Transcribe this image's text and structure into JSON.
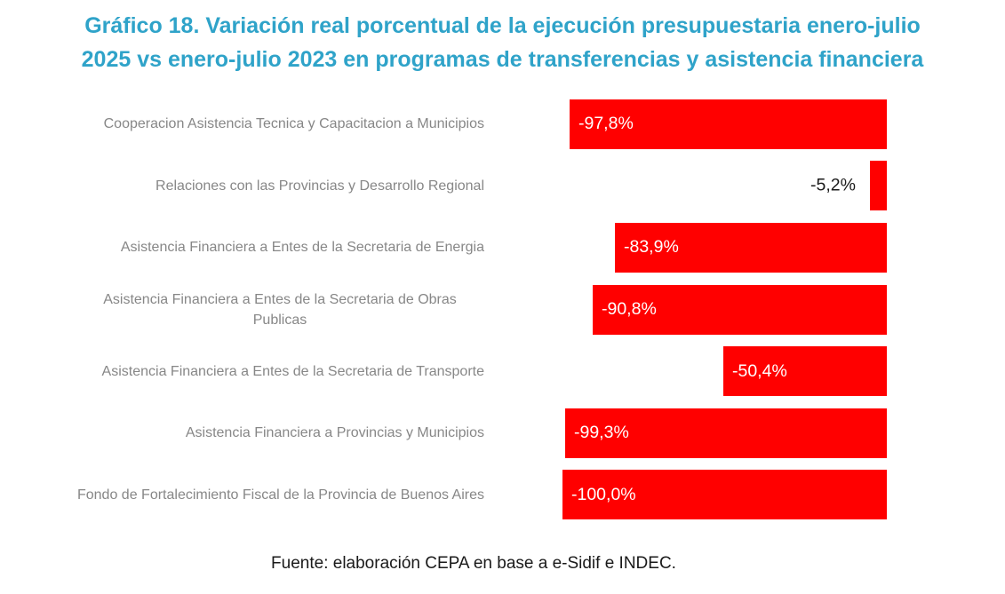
{
  "title": {
    "text": "Gráfico 18. Variación real porcentual de la ejecución presupuestaria enero-julio 2025 vs enero-julio 2023 en programas de transferencias y asistencia financiera",
    "lines": [
      "Gráfico 18. Variación real porcentual de la ejecución presupuestaria enero-julio",
      "2025 vs enero-julio 2023 en programas de transferencias y asistencia financiera"
    ]
  },
  "footer": {
    "text": "Fuente: elaboración CEPA en base a e-Sidif e INDEC."
  },
  "colors": {
    "background": "#ffffff",
    "title": "#2fa3c9",
    "bar": "#ff0000",
    "category_label": "#878787",
    "value_label_inside": "#ffffff",
    "value_label_outside": "#1a1a1a",
    "footer_text": "#1a1a1a"
  },
  "chart_data": {
    "type": "bar",
    "orientation": "horizontal",
    "title": "Gráfico 18. Variación real porcentual de la ejecución presupuestaria enero-julio 2025 vs enero-julio 2023 en programas de transferencias y asistencia financiera",
    "source": "Fuente: elaboración CEPA en base a e-Sidif e INDEC.",
    "xlim": [
      -100,
      0
    ],
    "grid": false,
    "legend": false,
    "axis_anchor": "right",
    "bar_color": "#ff0000",
    "categories": [
      "Cooperacion Asistencia Tecnica y Capacitacion a Municipios",
      "Relaciones con las Provincias y Desarrollo Regional",
      "Asistencia Financiera a Entes de la Secretaria de Energia",
      "Asistencia Financiera a Entes de la Secretaria de Obras Publicas",
      "Asistencia Financiera a Entes de la Secretaria de Transporte",
      "Asistencia Financiera a Provincias y Municipios",
      "Fondo de Fortalecimiento Fiscal de la Provincia de Buenos Aires"
    ],
    "values": [
      -97.8,
      -5.2,
      -83.9,
      -90.8,
      -50.4,
      -99.3,
      -100.0
    ],
    "value_labels": [
      "-97,8%",
      "-5,2%",
      "-83,9%",
      "-90,8%",
      "-50,4%",
      "-99,3%",
      "-100,0%"
    ]
  }
}
